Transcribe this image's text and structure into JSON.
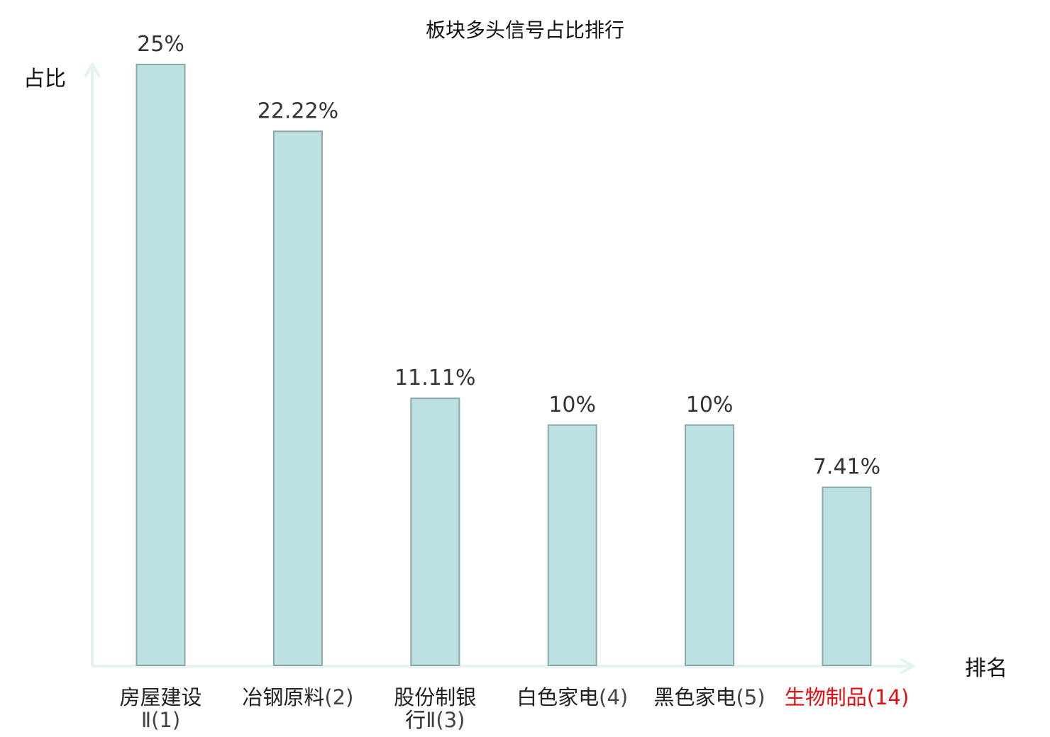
{
  "chart_data": {
    "type": "bar",
    "title": "板块多头信号占比排行",
    "ylabel": "占比",
    "xlabel": "排名",
    "ylim": [
      0,
      25
    ],
    "grid": false,
    "categories": [
      {
        "lines": [
          {
            "name": "房屋建设",
            "rank": ""
          },
          {
            "name": "",
            "rank": "Ⅱ(1)"
          }
        ],
        "value": 25,
        "label": "25%",
        "highlight": false
      },
      {
        "lines": [
          {
            "name": "冶钢原料",
            "rank": "(2)"
          }
        ],
        "value": 22.22,
        "label": "22.22%",
        "highlight": false
      },
      {
        "lines": [
          {
            "name": "股份制银",
            "rank": ""
          },
          {
            "name": "行",
            "rank": "Ⅱ(3)"
          }
        ],
        "value": 11.11,
        "label": "11.11%",
        "highlight": false
      },
      {
        "lines": [
          {
            "name": "白色家电",
            "rank": "(4)"
          }
        ],
        "value": 10,
        "label": "10%",
        "highlight": false
      },
      {
        "lines": [
          {
            "name": "黑色家电",
            "rank": "(5)"
          }
        ],
        "value": 10,
        "label": "10%",
        "highlight": false
      },
      {
        "lines": [
          {
            "name": "生物制品",
            "rank": "(14)"
          }
        ],
        "value": 7.41,
        "label": "7.41%",
        "highlight": true
      }
    ],
    "colors": {
      "bar_fill": "#bde0e2",
      "bar_stroke": "#8aa9ac",
      "axis": "#e2f3f1",
      "highlight": "#e01010"
    }
  }
}
